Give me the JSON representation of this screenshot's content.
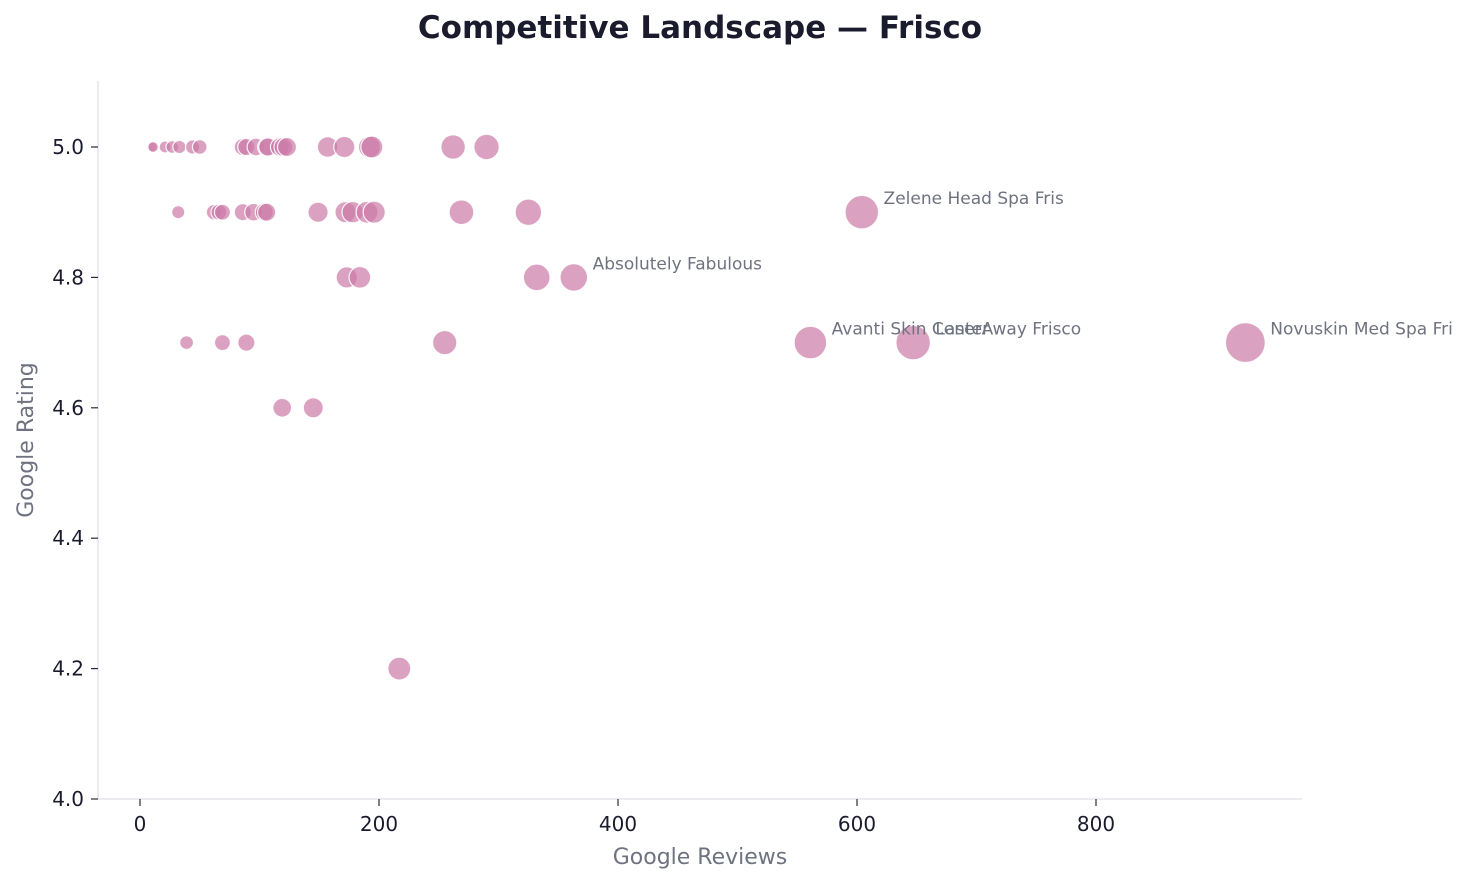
{
  "chart_data": {
    "type": "scatter",
    "title": "Competitive Landscape — Frisco",
    "xlabel": "Google Reviews",
    "ylabel": "Google Rating",
    "xlim": [
      -35,
      970
    ],
    "ylim": [
      4.0,
      5.1
    ],
    "xticks": [
      0,
      200,
      400,
      600,
      800
    ],
    "yticks": [
      4.0,
      4.2,
      4.4,
      4.6,
      4.8,
      5.0
    ],
    "xtick_labels": [
      "0",
      "200",
      "400",
      "600",
      "800"
    ],
    "ytick_labels": [
      "4.0",
      "4.2",
      "4.4",
      "4.6",
      "4.8",
      "5.0"
    ],
    "grid": false,
    "legend": null,
    "marker_color": "#cc79a7",
    "size_encoding": "bubble size proportional to Google Reviews",
    "points": [
      {
        "x": 10,
        "y": 5.0
      },
      {
        "x": 11,
        "y": 5.0
      },
      {
        "x": 21,
        "y": 5.0
      },
      {
        "x": 27,
        "y": 5.0
      },
      {
        "x": 33,
        "y": 5.0
      },
      {
        "x": 44,
        "y": 5.0
      },
      {
        "x": 50,
        "y": 5.0
      },
      {
        "x": 86,
        "y": 5.0
      },
      {
        "x": 89,
        "y": 5.0
      },
      {
        "x": 97,
        "y": 5.0
      },
      {
        "x": 106,
        "y": 5.0
      },
      {
        "x": 107,
        "y": 5.0
      },
      {
        "x": 117,
        "y": 5.0
      },
      {
        "x": 120,
        "y": 5.0
      },
      {
        "x": 123,
        "y": 5.0
      },
      {
        "x": 157,
        "y": 5.0
      },
      {
        "x": 171,
        "y": 5.0
      },
      {
        "x": 192,
        "y": 5.0
      },
      {
        "x": 194,
        "y": 5.0
      },
      {
        "x": 262,
        "y": 5.0
      },
      {
        "x": 290,
        "y": 5.0
      },
      {
        "x": 32,
        "y": 4.9
      },
      {
        "x": 62,
        "y": 4.9
      },
      {
        "x": 66,
        "y": 4.9
      },
      {
        "x": 69,
        "y": 4.9
      },
      {
        "x": 86,
        "y": 4.9
      },
      {
        "x": 95,
        "y": 4.9
      },
      {
        "x": 104,
        "y": 4.9
      },
      {
        "x": 106,
        "y": 4.9
      },
      {
        "x": 149,
        "y": 4.9
      },
      {
        "x": 172,
        "y": 4.9
      },
      {
        "x": 178,
        "y": 4.9
      },
      {
        "x": 190,
        "y": 4.9
      },
      {
        "x": 196,
        "y": 4.9
      },
      {
        "x": 269,
        "y": 4.9
      },
      {
        "x": 325,
        "y": 4.9
      },
      {
        "x": 604,
        "y": 4.9,
        "label": "Zelene Head Spa Fris"
      },
      {
        "x": 173,
        "y": 4.8
      },
      {
        "x": 184,
        "y": 4.8
      },
      {
        "x": 332,
        "y": 4.8
      },
      {
        "x": 363,
        "y": 4.8,
        "label": "Absolutely Fabulous"
      },
      {
        "x": 39,
        "y": 4.7
      },
      {
        "x": 69,
        "y": 4.7
      },
      {
        "x": 89,
        "y": 4.7
      },
      {
        "x": 255,
        "y": 4.7
      },
      {
        "x": 561,
        "y": 4.7,
        "label": "Avanti Skin Center"
      },
      {
        "x": 647,
        "y": 4.7,
        "label": "LaserAway Frisco"
      },
      {
        "x": 925,
        "y": 4.7,
        "label": "Novuskin Med Spa Fri"
      },
      {
        "x": 119,
        "y": 4.6
      },
      {
        "x": 145,
        "y": 4.6
      },
      {
        "x": 217,
        "y": 4.2
      }
    ],
    "annotations": [
      "Zelene Head Spa Fris",
      "Absolutely Fabulous",
      "Avanti Skin Center",
      "LaserAway Frisco",
      "Novuskin Med Spa Fri"
    ]
  }
}
